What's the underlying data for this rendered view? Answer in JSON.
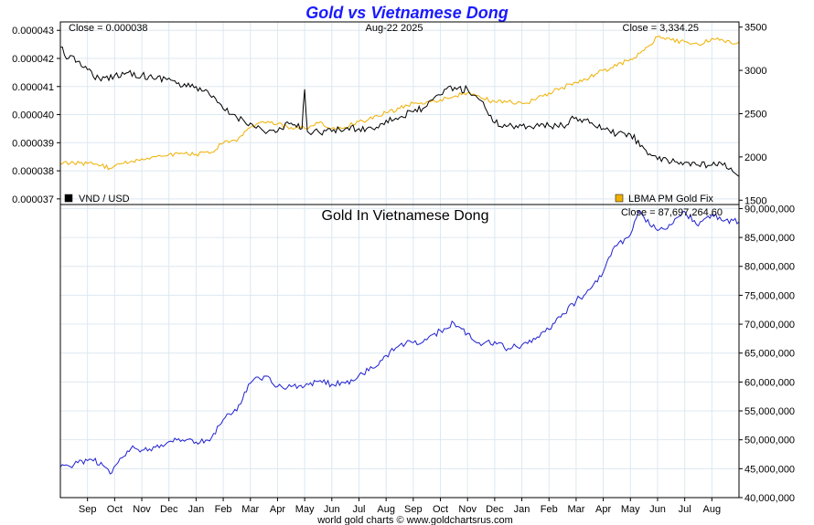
{
  "title": "Gold vs Vietnamese Dong",
  "footer": "world gold charts © www.goldchartsrus.com",
  "colors": {
    "title": "#1a1aff",
    "vnd": "#000000",
    "gold": "#f0b000",
    "gold_vnd": "#2020d0",
    "grid": "#dde8f0"
  },
  "chart_data": [
    {
      "type": "line",
      "panel": "top",
      "date_label": "Aug-22  2025",
      "left_close_label": "Close = 0.000038",
      "right_close_label": "Close = 3,334.25",
      "left_axis": {
        "ylim": [
          3.68e-05,
          4.33e-05
        ],
        "ticks": [
          "0.000037",
          "0.000038",
          "0.000039",
          "0.000040",
          "0.000041",
          "0.000042",
          "0.000043"
        ],
        "tick_values": [
          3.7e-05,
          3.8e-05,
          3.9e-05,
          4e-05,
          4.1e-05,
          4.2e-05,
          4.3e-05
        ]
      },
      "right_axis": {
        "ylim": [
          1450,
          3560
        ],
        "ticks": [
          "1500",
          "2000",
          "2500",
          "3000",
          "3500"
        ],
        "tick_values": [
          1500,
          2000,
          2500,
          3000,
          3500
        ]
      },
      "legend": {
        "placement": "bottom",
        "items": [
          "VND / USD",
          "LBMA PM Gold Fix"
        ]
      },
      "series": [
        {
          "name": "VND / USD",
          "axis": "left",
          "x": [
            0,
            0.3,
            0.7,
            1,
            1.5,
            2,
            2.5,
            3,
            3.4,
            4,
            4.5,
            5,
            5.5,
            6,
            6.5,
            7,
            7.5,
            8,
            8.5,
            8.9,
            9.0,
            9.1,
            9.5,
            10,
            10.5,
            11,
            11.5,
            12,
            12.5,
            13,
            13.5,
            14,
            14.3,
            14.6,
            15,
            15.5,
            16,
            16.5,
            17,
            17.5,
            18,
            18.5,
            19,
            19.5,
            20,
            20.5,
            21,
            21.5,
            22,
            22.5,
            23,
            23.5,
            24,
            24.4,
            24.7,
            25
          ],
          "values": [
            4.24e-05,
            4.2e-05,
            4.19e-05,
            4.16e-05,
            4.12e-05,
            4.14e-05,
            4.15e-05,
            4.14e-05,
            4.13e-05,
            4.13e-05,
            4.1e-05,
            4.1e-05,
            4.07e-05,
            4.02e-05,
            3.99e-05,
            3.97e-05,
            3.94e-05,
            3.94e-05,
            3.97e-05,
            3.95e-05,
            4.09e-05,
            3.94e-05,
            3.94e-05,
            3.94e-05,
            3.95e-05,
            3.95e-05,
            3.95e-05,
            3.98e-05,
            3.99e-05,
            4.01e-05,
            4.03e-05,
            4.07e-05,
            4.1e-05,
            4.09e-05,
            4.09e-05,
            4.05e-05,
            3.97e-05,
            3.96e-05,
            3.96e-05,
            3.96e-05,
            3.96e-05,
            3.96e-05,
            3.99e-05,
            3.97e-05,
            3.95e-05,
            3.93e-05,
            3.93e-05,
            3.88e-05,
            3.84e-05,
            3.83e-05,
            3.83e-05,
            3.82e-05,
            3.82e-05,
            3.82e-05,
            3.81e-05,
            3.78e-05
          ]
        },
        {
          "name": "LBMA PM Gold Fix",
          "axis": "right",
          "x": [
            0,
            0.5,
            1,
            1.5,
            1.9,
            2.2,
            2.6,
            3,
            3.5,
            4,
            4.5,
            5,
            5.5,
            6,
            6.5,
            7,
            7.5,
            8,
            8.5,
            9,
            9.5,
            10,
            10.5,
            11,
            11.5,
            12,
            12.5,
            13,
            13.5,
            14,
            14.5,
            15,
            15.5,
            16,
            16.5,
            17,
            17.5,
            18,
            18.5,
            19,
            19.5,
            20,
            20.5,
            21,
            21.5,
            22,
            22.5,
            23,
            23.5,
            24,
            24.5,
            25
          ],
          "values": [
            1920,
            1930,
            1925,
            1900,
            1870,
            1920,
            1950,
            1980,
            2000,
            2030,
            2040,
            2030,
            2040,
            2160,
            2180,
            2340,
            2400,
            2380,
            2340,
            2330,
            2390,
            2330,
            2340,
            2410,
            2440,
            2510,
            2560,
            2620,
            2640,
            2660,
            2700,
            2740,
            2680,
            2640,
            2640,
            2620,
            2660,
            2740,
            2800,
            2860,
            2920,
            3000,
            3050,
            3130,
            3230,
            3390,
            3350,
            3330,
            3300,
            3370,
            3320,
            3334
          ]
        }
      ],
      "grid": true
    },
    {
      "type": "line",
      "panel": "bottom",
      "title": "Gold In Vietnamese Dong",
      "right_close_label": "Close = 87,697,264.60",
      "right_axis": {
        "ylim": [
          40000000,
          90700000
        ],
        "ticks": [
          "40,000,000",
          "45,000,000",
          "50,000,000",
          "55,000,000",
          "60,000,000",
          "65,000,000",
          "70,000,000",
          "75,000,000",
          "80,000,000",
          "85,000,000",
          "90,000,000"
        ],
        "tick_values": [
          40000000,
          45000000,
          50000000,
          55000000,
          60000000,
          65000000,
          70000000,
          75000000,
          80000000,
          85000000,
          90000000
        ]
      },
      "xaxis": {
        "ticks": [
          "Sep",
          "Oct",
          "Nov",
          "Dec",
          "Jan",
          "Feb",
          "Mar",
          "Apr",
          "May",
          "Jun",
          "Jul",
          "Aug",
          "Sep",
          "Oct",
          "Nov",
          "Dec",
          "Jan",
          "Feb",
          "Mar",
          "Apr",
          "May",
          "Jun",
          "Jul",
          "Aug"
        ],
        "tick_positions": [
          1,
          2,
          3,
          4,
          5,
          6,
          7,
          8,
          9,
          10,
          11,
          12,
          13,
          14,
          15,
          16,
          17,
          18,
          19,
          20,
          21,
          22,
          23,
          24
        ],
        "xlim": [
          0,
          25
        ]
      },
      "series": [
        {
          "name": "Gold In Vietnamese Dong",
          "x": [
            0,
            0.5,
            1,
            1.5,
            1.9,
            2.2,
            2.6,
            3,
            3.5,
            4,
            4.5,
            5,
            5.5,
            6,
            6.5,
            7,
            7.5,
            8,
            8.5,
            9,
            9.5,
            10,
            10.5,
            11,
            11.5,
            12,
            12.5,
            13,
            13.5,
            14,
            14.5,
            15,
            15.5,
            16,
            16.5,
            17,
            17.5,
            18,
            18.5,
            19,
            19.5,
            20,
            20.2,
            20.5,
            21,
            21.3,
            21.5,
            22,
            22.5,
            23,
            23.5,
            24,
            24.5,
            25
          ],
          "values": [
            45300000,
            45700000,
            46400000,
            46100000,
            44300000,
            46800000,
            48500000,
            48200000,
            48700000,
            49700000,
            50000000,
            49600000,
            49800000,
            53500000,
            55000000,
            59800000,
            61000000,
            59200000,
            59200000,
            59300000,
            60100000,
            59600000,
            59800000,
            61200000,
            62400000,
            64600000,
            66400000,
            66800000,
            67300000,
            68900000,
            70200000,
            68400000,
            66300000,
            67000000,
            65800000,
            66400000,
            67400000,
            69100000,
            71800000,
            74000000,
            76000000,
            79000000,
            81500000,
            83600000,
            85500000,
            89600000,
            88500000,
            86200000,
            87200000,
            89500000,
            87000000,
            89000000,
            88000000,
            87700000
          ]
        }
      ],
      "grid": true
    }
  ]
}
